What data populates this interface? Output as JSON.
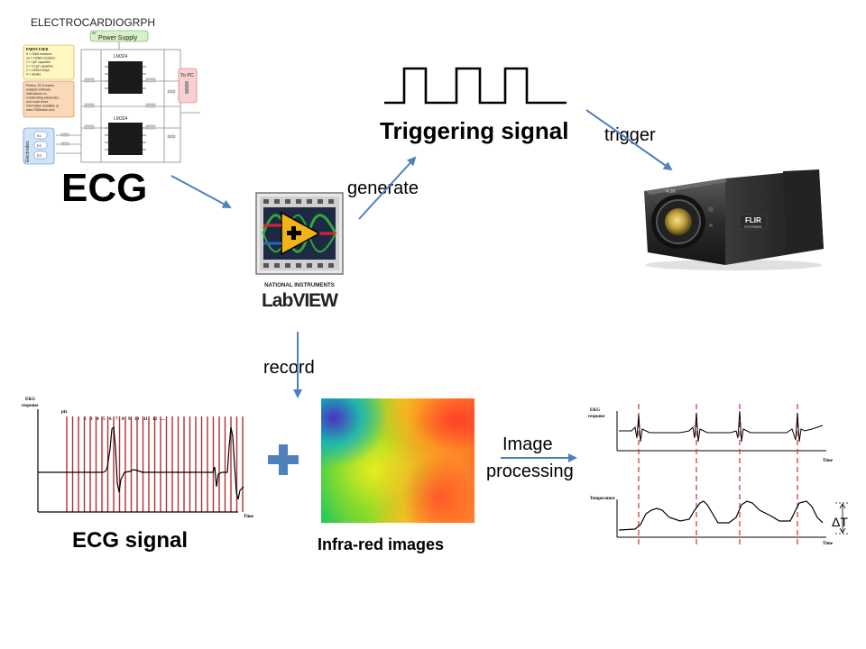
{
  "schematic": {
    "title": "ELECTROCARDIOGRPH",
    "power_supply": "Power Supply",
    "power_tag": "9V",
    "chip_label_top": "LM324",
    "chip_label_bottom": "LM324",
    "to_pc": "To PC",
    "parts_used_title": "PARTS USED",
    "parts": [
      "8 × 10kΩ resistors",
      "12 × 100kΩ resistors",
      "1 × 1µF capacitor",
      "1 × 0.1µF capacitor",
      "2 × LM324 chips",
      "4 × diodes"
    ],
    "note_lines": [
      "Photos, ECG traces,",
      "analysis software,",
      "instructions on",
      "constructing electrodes,",
      "and much more",
      "information available at",
      "www.TBDIndex.com"
    ],
    "electrodes_label": "Electrodes",
    "electrode_pins": [
      "E1",
      "E2",
      "E3"
    ]
  },
  "labels": {
    "ecg": "ECG",
    "triggering_signal": "Triggering signal",
    "trigger": "trigger",
    "generate": "generate",
    "record": "record",
    "ecg_signal": "ECG signal",
    "infra_red_images": "Infra-red images",
    "image_processing_line1": "Image",
    "image_processing_line2": "processing"
  },
  "labview": {
    "brand_top": "NATIONAL INSTRUMENTS",
    "brand_main": "LabVIEW"
  },
  "camera": {
    "brand": "FLIR",
    "brand_sub": "SYSTEMS",
    "body_label": "FLIR"
  },
  "ecg_plot": {
    "ylabel_line1": "EKG",
    "ylabel_line2": "response",
    "xlabel": "Time",
    "pixel_label": "pix",
    "frame_numbers": [
      "1",
      "2",
      "3",
      "4",
      "5",
      "6",
      "7",
      "8",
      "9",
      "10",
      "11",
      "12",
      "..."
    ]
  },
  "result_plot": {
    "ekg_ylabel_line1": "EKG",
    "ekg_ylabel_line2": "response",
    "ekg_xlabel": "Time",
    "temp_ylabel": "Temperature",
    "temp_xlabel": "Time",
    "delta_label": "ΔT"
  },
  "colors": {
    "arrow": "#4f81bd",
    "plus": "#4f81bd",
    "frame_lines": "#b03030",
    "red_dash": "#d03030"
  }
}
